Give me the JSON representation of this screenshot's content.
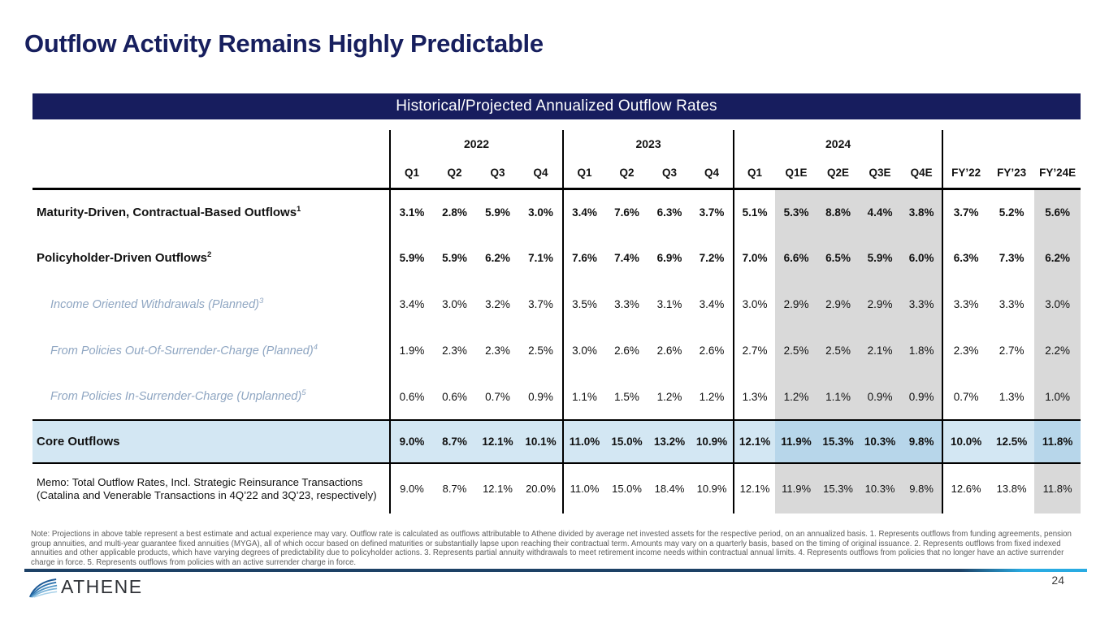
{
  "slide": {
    "title": "Outflow Activity Remains Highly Predictable",
    "page_number": "24"
  },
  "banner": {
    "title": "Historical/Projected Annualized Outflow Rates"
  },
  "table": {
    "year_groups": [
      {
        "label": "2022",
        "cols": 4
      },
      {
        "label": "2023",
        "cols": 4
      },
      {
        "label": "2024",
        "cols": 5
      },
      {
        "label": "",
        "cols": 3
      }
    ],
    "column_headers": [
      "Q1",
      "Q2",
      "Q3",
      "Q4",
      "Q1",
      "Q2",
      "Q3",
      "Q4",
      "Q1",
      "Q1E",
      "Q2E",
      "Q3E",
      "Q4E",
      "FY’22",
      "FY’23",
      "FY’24E"
    ],
    "estimate_col_indices": [
      9,
      10,
      11,
      12,
      15
    ],
    "rows": [
      {
        "label": "Maturity-Driven, Contractual-Based Outflows",
        "sup": "1",
        "style": "bold",
        "values": [
          "3.1%",
          "2.8%",
          "5.9%",
          "3.0%",
          "3.4%",
          "7.6%",
          "6.3%",
          "3.7%",
          "5.1%",
          "5.3%",
          "8.8%",
          "4.4%",
          "3.8%",
          "3.7%",
          "5.2%",
          "5.6%"
        ]
      },
      {
        "label": "Policyholder-Driven Outflows",
        "sup": "2",
        "style": "bold",
        "values": [
          "5.9%",
          "5.9%",
          "6.2%",
          "7.1%",
          "7.6%",
          "7.4%",
          "6.9%",
          "7.2%",
          "7.0%",
          "6.6%",
          "6.5%",
          "5.9%",
          "6.0%",
          "6.3%",
          "7.3%",
          "6.2%"
        ]
      },
      {
        "label": "Income Oriented Withdrawals (Planned)",
        "sup": "3",
        "style": "sub",
        "values": [
          "3.4%",
          "3.0%",
          "3.2%",
          "3.7%",
          "3.5%",
          "3.3%",
          "3.1%",
          "3.4%",
          "3.0%",
          "2.9%",
          "2.9%",
          "2.9%",
          "3.3%",
          "3.3%",
          "3.3%",
          "3.0%"
        ]
      },
      {
        "label": "From Policies Out-Of-Surrender-Charge (Planned)",
        "sup": "4",
        "style": "sub",
        "values": [
          "1.9%",
          "2.3%",
          "2.3%",
          "2.5%",
          "3.0%",
          "2.6%",
          "2.6%",
          "2.6%",
          "2.7%",
          "2.5%",
          "2.5%",
          "2.1%",
          "1.8%",
          "2.3%",
          "2.7%",
          "2.2%"
        ]
      },
      {
        "label": "From Policies In-Surrender-Charge (Unplanned)",
        "sup": "5",
        "style": "sub",
        "values": [
          "0.6%",
          "0.6%",
          "0.7%",
          "0.9%",
          "1.1%",
          "1.5%",
          "1.2%",
          "1.2%",
          "1.3%",
          "1.2%",
          "1.1%",
          "0.9%",
          "0.9%",
          "0.7%",
          "1.3%",
          "1.0%"
        ]
      },
      {
        "label": "Core Outflows",
        "sup": "",
        "style": "core",
        "values": [
          "9.0%",
          "8.7%",
          "12.1%",
          "10.1%",
          "11.0%",
          "15.0%",
          "13.2%",
          "10.9%",
          "12.1%",
          "11.9%",
          "15.3%",
          "10.3%",
          "9.8%",
          "10.0%",
          "12.5%",
          "11.8%"
        ]
      },
      {
        "label": "Memo: Total Outflow Rates, Incl. Strategic Reinsurance Transactions (Catalina and Venerable Transactions in 4Q’22 and 3Q’23, respectively)",
        "sup": "",
        "style": "memo",
        "values": [
          "9.0%",
          "8.7%",
          "12.1%",
          "20.0%",
          "11.0%",
          "15.0%",
          "18.4%",
          "10.9%",
          "12.1%",
          "11.9%",
          "15.3%",
          "10.3%",
          "9.8%",
          "12.6%",
          "13.8%",
          "11.8%"
        ]
      }
    ]
  },
  "footnote": "Note: Projections in above table represent a best estimate and actual experience may vary. Outflow rate is calculated as outflows attributable to Athene divided by average net invested assets for the respective period, on an annualized basis. 1. Represents outflows from funding agreements, pension group annuities, and multi-year guarantee fixed annuities (MYGA), all of which occur based on defined maturities or substantially lapse upon reaching their contractual term. Amounts may vary on a quarterly basis, based on the timing of original issuance. 2. Represents outflows from fixed indexed annuities and other applicable products, which have varying degrees of predictability due to policyholder actions. 3. Represents partial annuity withdrawals to meet retirement income needs within contractual annual limits. 4. Represents outflows from policies that no longer have an active surrender charge in force. 5. Represents outflows from policies with an active surrender charge in force.",
  "logo": {
    "brand": "ATHENE"
  },
  "colors": {
    "navy": "#171d5e",
    "core_row_blue": "#d3e7f3",
    "core_row_estimate_blue": "#b7d6ea",
    "estimate_gray": "#d9d9d9",
    "sub_row_label_blue": "#8fa6c2",
    "accent_cyan": "#29abe2"
  }
}
